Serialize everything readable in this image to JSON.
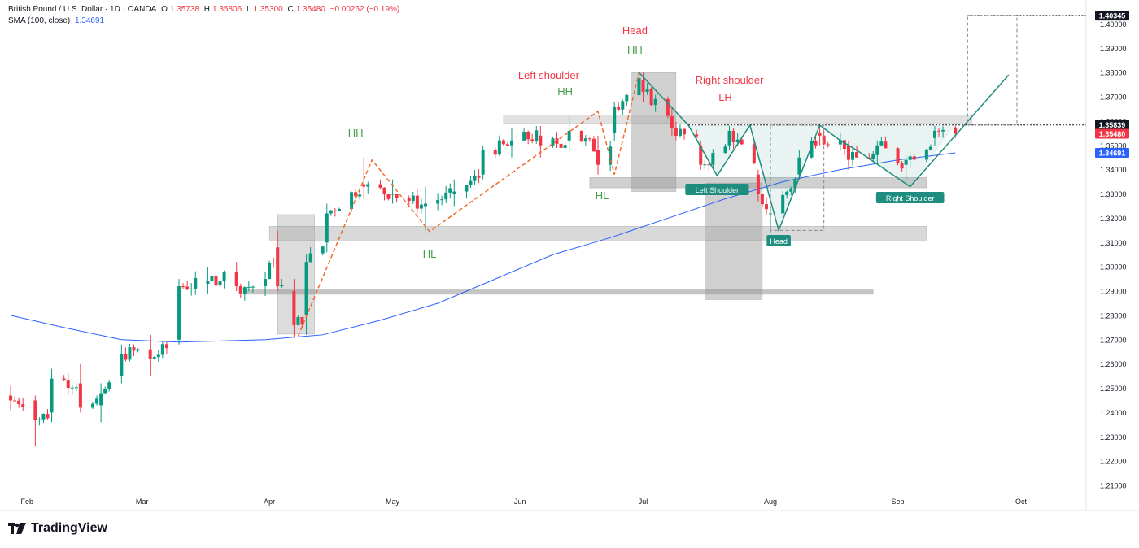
{
  "header": {
    "symbol": "British Pound / U.S. Dollar · 1D · OANDA",
    "o_label": "O",
    "o": "1.35738",
    "h_label": "H",
    "h": "1.35806",
    "l_label": "L",
    "l": "1.35300",
    "c_label": "C",
    "c": "1.35480",
    "change": "−0.00262 (−0.19%)",
    "sma_label": "SMA (100, close)",
    "sma_value": "1.34691"
  },
  "brand": {
    "name": "TradingView"
  },
  "colors": {
    "up": "#089981",
    "down": "#f23645",
    "sma": "#2962ff",
    "pattern": "#1e8c7e",
    "fib": "#f06b2d",
    "zone": "#9e9e9e",
    "label_red": "#f23645",
    "label_green": "#43a047"
  },
  "chart_data": {
    "type": "line",
    "title": "",
    "xlabel": "",
    "ylabel": "",
    "x_ticks": [
      "Feb",
      "Mar",
      "Apr",
      "May",
      "Jun",
      "Jul",
      "Aug",
      "Sep",
      "Oct"
    ],
    "y_ticks": [
      "1.21000",
      "1.22000",
      "1.23000",
      "1.24000",
      "1.25000",
      "1.26000",
      "1.27000",
      "1.28000",
      "1.29000",
      "1.30000",
      "1.31000",
      "1.32000",
      "1.33000",
      "1.34000",
      "1.35000",
      "1.36000",
      "1.37000",
      "1.38000",
      "1.39000",
      "1.40000"
    ],
    "ylim": [
      1.207,
      1.4065
    ],
    "price_tags": [
      {
        "text": "1.40345",
        "value": 1.40345,
        "style": "dark"
      },
      {
        "text": "1.35839",
        "value": 1.35839,
        "style": "dark"
      },
      {
        "text": "1.35480",
        "value": 1.3548,
        "style": "red"
      },
      {
        "text": "1.34691",
        "value": 1.34691,
        "style": "blue"
      }
    ],
    "series": [
      {
        "name": "SMA (100, close)",
        "note": "moving average line",
        "points": [
          [
            "2025-01-28",
            1.28
          ],
          [
            "2025-02-10",
            1.275
          ],
          [
            "2025-02-24",
            1.27
          ],
          [
            "2025-03-10",
            1.269
          ],
          [
            "2025-03-31",
            1.27
          ],
          [
            "2025-04-14",
            1.272
          ],
          [
            "2025-04-28",
            1.278
          ],
          [
            "2025-05-12",
            1.285
          ],
          [
            "2025-05-26",
            1.295
          ],
          [
            "2025-06-09",
            1.305
          ],
          [
            "2025-06-23",
            1.312
          ],
          [
            "2025-07-07",
            1.32
          ],
          [
            "2025-07-21",
            1.328
          ],
          [
            "2025-08-04",
            1.335
          ],
          [
            "2025-08-18",
            1.34
          ],
          [
            "2025-09-01",
            1.344
          ],
          [
            "2025-09-15",
            1.3469
          ]
        ]
      }
    ],
    "candles_daily_ohlc": [
      [
        "2025-01-28",
        1.247,
        1.251,
        1.241,
        1.245
      ],
      [
        "2025-02-03",
        1.245,
        1.247,
        1.226,
        1.237
      ],
      [
        "2025-02-07",
        1.24,
        1.258,
        1.236,
        1.254
      ],
      [
        "2025-02-14",
        1.252,
        1.26,
        1.24,
        1.242
      ],
      [
        "2025-02-19",
        1.243,
        1.252,
        1.236,
        1.248
      ],
      [
        "2025-02-24",
        1.255,
        1.268,
        1.252,
        1.264
      ],
      [
        "2025-03-03",
        1.266,
        1.272,
        1.255,
        1.262
      ],
      [
        "2025-03-10",
        1.27,
        1.295,
        1.268,
        1.292
      ],
      [
        "2025-03-17",
        1.293,
        1.3,
        1.289,
        1.294
      ],
      [
        "2025-03-24",
        1.298,
        1.302,
        1.29,
        1.292
      ],
      [
        "2025-03-31",
        1.292,
        1.298,
        1.288,
        1.295
      ],
      [
        "2025-04-03",
        1.308,
        1.315,
        1.29,
        1.292
      ],
      [
        "2025-04-07",
        1.29,
        1.295,
        1.271,
        1.276
      ],
      [
        "2025-04-10",
        1.28,
        1.305,
        1.272,
        1.302
      ],
      [
        "2025-04-15",
        1.31,
        1.326,
        1.306,
        1.322
      ],
      [
        "2025-04-24",
        1.334,
        1.345,
        1.328,
        1.333
      ],
      [
        "2025-05-01",
        1.33,
        1.336,
        1.326,
        1.33
      ],
      [
        "2025-05-09",
        1.325,
        1.333,
        1.315,
        1.326
      ],
      [
        "2025-05-16",
        1.33,
        1.336,
        1.325,
        1.331
      ],
      [
        "2025-05-23",
        1.338,
        1.35,
        1.336,
        1.348
      ],
      [
        "2025-05-30",
        1.35,
        1.357,
        1.345,
        1.352
      ],
      [
        "2025-06-06",
        1.354,
        1.358,
        1.345,
        1.35
      ],
      [
        "2025-06-13",
        1.352,
        1.362,
        1.348,
        1.356
      ],
      [
        "2025-06-20",
        1.348,
        1.354,
        1.338,
        1.342
      ],
      [
        "2025-06-24",
        1.355,
        1.368,
        1.352,
        1.366
      ],
      [
        "2025-07-01",
        1.377,
        1.38,
        1.368,
        1.372
      ],
      [
        "2025-07-08",
        1.362,
        1.366,
        1.354,
        1.357
      ],
      [
        "2025-07-15",
        1.35,
        1.352,
        1.34,
        1.342
      ],
      [
        "2025-07-22",
        1.35,
        1.358,
        1.348,
        1.356
      ],
      [
        "2025-07-29",
        1.338,
        1.34,
        1.327,
        1.33
      ],
      [
        "2025-08-01",
        1.322,
        1.325,
        1.314,
        1.322
      ],
      [
        "2025-08-08",
        1.338,
        1.348,
        1.336,
        1.345
      ],
      [
        "2025-08-13",
        1.355,
        1.358,
        1.35,
        1.354
      ],
      [
        "2025-08-20",
        1.35,
        1.352,
        1.34,
        1.344
      ],
      [
        "2025-08-27",
        1.346,
        1.352,
        1.342,
        1.35
      ],
      [
        "2025-09-03",
        1.342,
        1.346,
        1.335,
        1.344
      ],
      [
        "2025-09-10",
        1.353,
        1.358,
        1.35,
        1.356
      ],
      [
        "2025-09-15",
        1.35738,
        1.35806,
        1.353,
        1.3548
      ]
    ],
    "annotations": [
      {
        "text": "Head",
        "color": "red"
      },
      {
        "text": "HH",
        "color": "green"
      },
      {
        "text": "Left shoulder",
        "color": "red"
      },
      {
        "text": "HH",
        "color": "green"
      },
      {
        "text": "Right shoulder",
        "color": "red"
      },
      {
        "text": "LH",
        "color": "red"
      },
      {
        "text": "HH",
        "color": "green"
      },
      {
        "text": "HL",
        "color": "green"
      },
      {
        "text": "HL",
        "color": "green"
      }
    ],
    "pattern_labels": [
      "Left Shoulder",
      "Head",
      "Right Shoulder"
    ],
    "projection_target": 1.40345,
    "neckline": 1.35839
  }
}
